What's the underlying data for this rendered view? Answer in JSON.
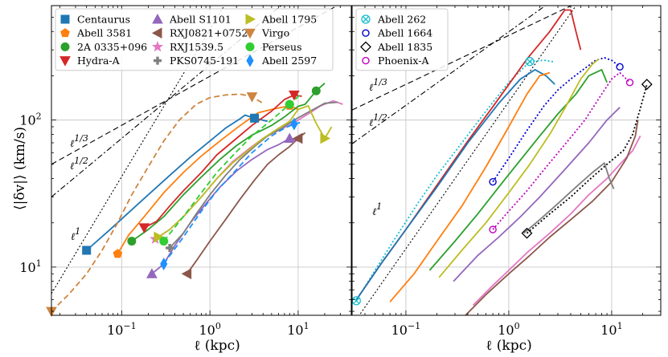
{
  "chart_data": [
    {
      "type": "line",
      "panel": "left",
      "xlabel": "ℓ (kpc)",
      "ylabel": "⟨|δv|⟩ (km/s)",
      "xscale": "log",
      "yscale": "log",
      "xlim": [
        0.016,
        40
      ],
      "ylim": [
        4.7,
        600
      ],
      "grid": true,
      "x_ticks": [
        {
          "value": 0.1,
          "label": "10⁻¹"
        },
        {
          "value": 1,
          "label": "10⁰"
        },
        {
          "value": 10,
          "label": "10¹"
        }
      ],
      "y_ticks": [
        {
          "value": 10,
          "label": "10¹"
        },
        {
          "value": 100,
          "label": "10²"
        }
      ],
      "legend_columns": 3,
      "legend_location": "upper-left",
      "reference_lines": [
        {
          "label": "ℓ¹",
          "slope": 1,
          "x0": 0.016,
          "y0": 6.6,
          "dash": "dotted"
        },
        {
          "label": "ℓ¹ᴧ2",
          "slope": 0.5,
          "x0": 0.016,
          "y0": 30,
          "dash": "dashdot"
        },
        {
          "label": "ℓ¹ᴧ3",
          "slope": 0.3333,
          "x0": 0.016,
          "y0": 50,
          "dash": "dashed"
        }
      ],
      "series": [
        {
          "name": "Centaurus",
          "color": "#1f77b4",
          "marker": "square",
          "dash": "solid",
          "x": [
            0.04,
            0.07,
            0.12,
            0.2,
            0.35,
            0.6,
            1.0,
            1.5,
            2.2,
            2.5,
            3.2,
            4.5
          ],
          "y": [
            13,
            17.5,
            23.5,
            31,
            42,
            56,
            72,
            88,
            102,
            108,
            103,
            98
          ]
        },
        {
          "name": "Abell 3581",
          "color": "#ff7f0e",
          "marker": "pentagon",
          "dash": "solid",
          "x": [
            0.09,
            0.12,
            0.18,
            0.3,
            0.5,
            0.8,
            1.3,
            2.0,
            3.5,
            5.0,
            8.0,
            10.0
          ],
          "y": [
            12.3,
            16.5,
            22,
            32,
            44,
            57,
            72,
            88,
            112,
            118,
            125,
            118
          ]
        },
        {
          "name": "2A 0335+096",
          "color": "#2ca02c",
          "marker": "circle",
          "dash": "solid",
          "x": [
            0.13,
            0.2,
            0.3,
            0.5,
            0.8,
            1.3,
            2.0,
            3.0,
            5.0,
            7.0,
            10.0,
            12.0,
            16.0,
            20.0
          ],
          "y": [
            15,
            18,
            22,
            31,
            41,
            54,
            67,
            79,
            92,
            105,
            124,
            128,
            158,
            178
          ]
        },
        {
          "name": "Hydra-A",
          "color": "#d62728",
          "marker": "triangle-down",
          "dash": "solid",
          "x": [
            0.18,
            0.25,
            0.35,
            0.5,
            0.8,
            1.2,
            2.0,
            3.0,
            5.0,
            7.0,
            9.0,
            11.0
          ],
          "y": [
            18.5,
            20.5,
            26,
            33,
            44,
            58,
            75,
            92,
            115,
            138,
            148,
            145
          ]
        },
        {
          "name": "Abell S1101",
          "color": "#9467bd",
          "marker": "triangle-up",
          "dash": "solid",
          "x": [
            0.22,
            0.3,
            0.4,
            0.6,
            0.9,
            1.3,
            2.0,
            3.0,
            4.5,
            6.0,
            8.0,
            10.0
          ],
          "y": [
            9,
            10.5,
            14,
            20,
            27,
            35,
            45,
            54,
            63,
            68,
            75,
            72
          ]
        },
        {
          "name": "RXJ0821+0752",
          "color": "#8c564b",
          "marker": "triangle-left",
          "dash": "solid",
          "x": [
            0.55,
            0.7,
            1.0,
            1.5,
            2.2,
            3.2,
            4.5,
            6.0,
            8.0,
            10.0,
            12.0
          ],
          "y": [
            9,
            11,
            15,
            21,
            29,
            39,
            50,
            58,
            66,
            75,
            82
          ]
        },
        {
          "name": "RXJ1539.5",
          "color": "#e377c2",
          "marker": "star",
          "dash": "solid",
          "x": [
            0.24,
            0.35,
            0.5,
            0.8,
            1.2,
            1.8,
            2.8,
            4.0,
            6.0,
            9.0,
            13.0,
            18.0,
            25.0,
            32.0
          ],
          "y": [
            15.5,
            18,
            22,
            30,
            40,
            52,
            64,
            75,
            85,
            96,
            110,
            125,
            135,
            128
          ]
        },
        {
          "name": "PKS0745-191",
          "color": "#7f7f7f",
          "marker": "plus",
          "dash": "solid",
          "x": [
            0.35,
            0.5,
            0.7,
            1.0,
            1.5,
            2.2,
            3.2,
            4.5,
            6.5,
            9.0,
            13.0,
            20.0,
            28.0
          ],
          "y": [
            13.5,
            17,
            23,
            31,
            42,
            54,
            66,
            78,
            88,
            100,
            113,
            130,
            132
          ]
        },
        {
          "name": "Abell 1795",
          "color": "#bcbd22",
          "marker": "triangle-right",
          "dash": "solid",
          "x": [
            0.26,
            0.35,
            0.5,
            0.8,
            1.2,
            1.8,
            2.8,
            4.0,
            6.0,
            8.0,
            10.0,
            13.0,
            16.0,
            20.0,
            24.0
          ],
          "y": [
            16,
            18,
            22,
            30,
            40,
            51,
            63,
            75,
            88,
            98,
            118,
            125,
            95,
            75,
            90
          ]
        },
        {
          "name": "Virgo",
          "color": "#cd853f",
          "marker": "triangle-down",
          "dash": "dashed",
          "x": [
            0.016,
            0.025,
            0.04,
            0.06,
            0.09,
            0.13,
            0.2,
            0.3,
            0.45,
            0.7,
            1.0,
            1.5,
            2.2,
            3.0,
            4.0
          ],
          "y": [
            5,
            6.5,
            9,
            13,
            20,
            31,
            48,
            72,
            100,
            128,
            142,
            148,
            150,
            144,
            130
          ]
        },
        {
          "name": "Perseus",
          "color": "#32cd32",
          "marker": "hexagon",
          "dash": "dashed",
          "x": [
            0.3,
            0.5,
            0.8,
            1.2,
            2.0,
            3.0,
            5.0,
            8.0,
            10.5
          ],
          "y": [
            15,
            22,
            32,
            44,
            61,
            78,
            100,
            128,
            148
          ]
        },
        {
          "name": "Abell 2597",
          "color": "#1e90ff",
          "marker": "diamond",
          "dash": "dashed",
          "x": [
            0.3,
            0.5,
            0.8,
            1.2,
            2.0,
            3.0,
            5.0,
            7.0,
            9.0,
            10.5
          ],
          "y": [
            10.5,
            16,
            24,
            33,
            46,
            60,
            78,
            88,
            94,
            96
          ]
        }
      ]
    },
    {
      "type": "line",
      "panel": "right",
      "xlabel": "ℓ (kpc)",
      "xscale": "log",
      "yscale": "log",
      "xlim": [
        0.03,
        30
      ],
      "ylim": [
        4.7,
        600
      ],
      "grid": true,
      "x_ticks": [
        {
          "value": 0.1,
          "label": "10⁻¹"
        },
        {
          "value": 1,
          "label": "10⁰"
        },
        {
          "value": 10,
          "label": "10¹"
        }
      ],
      "legend_columns": 1,
      "legend_location": "upper-left",
      "reference_lines": [
        {
          "label": "ℓ¹",
          "slope": 1,
          "x0": 0.03,
          "y0": 4.0,
          "dash": "dotted"
        },
        {
          "label": "ℓ¹ᴧ2",
          "slope": 0.5,
          "x0": 0.03,
          "y0": 69,
          "dash": "dashdot"
        },
        {
          "label": "ℓ¹ᴧ3",
          "slope": 0.3333,
          "x0": 0.03,
          "y0": 117,
          "dash": "dashed"
        }
      ],
      "series": [
        {
          "name": "Abell 262",
          "color": "#17becf",
          "marker": "x-circle",
          "dash": "dotted",
          "x": [
            0.033,
            0.05,
            0.08,
            0.13,
            0.2,
            0.35,
            0.6,
            1.0,
            1.6,
            2.2,
            2.8
          ],
          "y": [
            5.9,
            9.5,
            16,
            27,
            42,
            70,
            115,
            180,
            250,
            255,
            248
          ]
        },
        {
          "name": "Abell 1664",
          "color": "#0000cd",
          "marker": "hollow-circle",
          "dash": "dotted",
          "x": [
            0.7,
            1.0,
            1.5,
            2.2,
            3.0,
            4.0,
            5.5,
            7.0,
            8.5,
            10.0,
            12.0
          ],
          "y": [
            38,
            55,
            85,
            125,
            160,
            190,
            225,
            255,
            265,
            255,
            230
          ]
        },
        {
          "name": "Abell 1835",
          "color": "#000000",
          "marker": "hollow-diamond",
          "dash": "dotted",
          "x": [
            1.5,
            2.5,
            4.0,
            6.0,
            9.0,
            13.0,
            16.0,
            19.0,
            22.0
          ],
          "y": [
            17,
            23,
            30,
            39,
            50,
            62,
            80,
            120,
            175
          ]
        },
        {
          "name": "Phoenix-A",
          "color": "#c000c0",
          "marker": "hollow-circle",
          "dash": "dotted",
          "x": [
            0.7,
            1.0,
            1.5,
            2.2,
            3.5,
            5.5,
            8.0,
            10.0,
            12.0,
            15.0
          ],
          "y": [
            18,
            24,
            33,
            46,
            68,
            100,
            150,
            190,
            210,
            180
          ]
        },
        {
          "name": "red",
          "color": "#d62728",
          "marker": "none",
          "dash": "solid",
          "x": [
            0.033,
            0.06,
            0.1,
            0.2,
            0.4,
            0.8,
            1.5,
            2.5,
            3.5,
            4.0,
            4.5,
            5.0
          ],
          "y": [
            6,
            11,
            18,
            36,
            72,
            140,
            260,
            400,
            560,
            560,
            400,
            300
          ]
        },
        {
          "name": "blue",
          "color": "#1f77b4",
          "marker": "none",
          "dash": "solid",
          "x": [
            0.033,
            0.06,
            0.1,
            0.2,
            0.4,
            0.8,
            1.3,
            1.8,
            2.3,
            2.8
          ],
          "y": [
            6,
            11,
            18,
            35,
            70,
            130,
            190,
            220,
            200,
            175
          ]
        },
        {
          "name": "orange",
          "color": "#ff7f0e",
          "marker": "none",
          "dash": "solid",
          "x": [
            0.07,
            0.12,
            0.2,
            0.35,
            0.6,
            1.0,
            1.5,
            2.0,
            2.5
          ],
          "y": [
            5.8,
            9,
            15,
            26,
            48,
            90,
            150,
            200,
            210
          ]
        },
        {
          "name": "green",
          "color": "#2ca02c",
          "marker": "none",
          "dash": "solid",
          "x": [
            0.17,
            0.3,
            0.5,
            0.8,
            1.2,
            2.0,
            3.0,
            4.5,
            6.0,
            8.0,
            9.0
          ],
          "y": [
            9.5,
            15,
            23,
            35,
            50,
            78,
            110,
            150,
            200,
            220,
            180
          ]
        },
        {
          "name": "olive",
          "color": "#bcbd22",
          "marker": "none",
          "dash": "solid",
          "x": [
            0.21,
            0.35,
            0.6,
            1.0,
            1.6,
            2.5,
            3.5,
            5.0,
            6.5,
            7.5
          ],
          "y": [
            8.5,
            13,
            20,
            32,
            50,
            80,
            120,
            190,
            240,
            260
          ]
        },
        {
          "name": "purple",
          "color": "#9467bd",
          "marker": "none",
          "dash": "solid",
          "x": [
            0.29,
            0.5,
            0.8,
            1.3,
            2.0,
            3.5,
            6.0,
            9.0,
            12.0
          ],
          "y": [
            8,
            12,
            16,
            22,
            30,
            46,
            70,
            100,
            122
          ]
        },
        {
          "name": "pink",
          "color": "#e377c2",
          "marker": "none",
          "dash": "solid",
          "x": [
            0.45,
            0.7,
            1.0,
            1.5,
            2.5,
            4.0,
            6.0,
            9.0,
            12.0,
            16.0,
            19.0
          ],
          "y": [
            5.5,
            7.5,
            9.5,
            12.5,
            17,
            23,
            31,
            40,
            50,
            62,
            78
          ]
        },
        {
          "name": "brown",
          "color": "#8c564b",
          "marker": "none",
          "dash": "solid",
          "x": [
            0.38,
            0.6,
            1.0,
            1.6,
            2.5,
            4.0,
            6.5,
            10.0,
            14.0,
            17.0,
            18.0
          ],
          "y": [
            4.7,
            6.5,
            9,
            12,
            16,
            21,
            28,
            38,
            55,
            78,
            100
          ]
        },
        {
          "name": "gray",
          "color": "#7f7f7f",
          "marker": "none",
          "dash": "solid",
          "x": [
            1.4,
            2.0,
            3.0,
            4.5,
            6.5,
            8.5,
            9.5,
            10.5
          ],
          "y": [
            17,
            21,
            27,
            35,
            44,
            51,
            40,
            34
          ]
        }
      ]
    }
  ]
}
